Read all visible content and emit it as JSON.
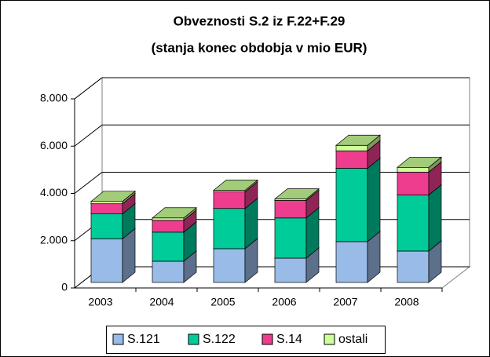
{
  "chart_data": {
    "type": "bar3d-stacked",
    "title": "Obveznosti S.2 iz F.22+F.29",
    "subtitle": "(stanja konec obdobja v mio EUR)",
    "categories": [
      "2003",
      "2004",
      "2005",
      "2006",
      "2007",
      "2008"
    ],
    "series": [
      {
        "name": "S.121",
        "color": "#99bbe8",
        "values": [
          1850,
          900,
          1430,
          1030,
          1730,
          1330
        ]
      },
      {
        "name": "S.122",
        "color": "#00cc99",
        "values": [
          1050,
          1230,
          1700,
          1700,
          3100,
          2370
        ]
      },
      {
        "name": "S.14",
        "color": "#ee3d8f",
        "values": [
          430,
          500,
          700,
          740,
          740,
          970
        ]
      },
      {
        "name": "ostali",
        "color": "#ccff99",
        "values": [
          100,
          100,
          70,
          60,
          230,
          200
        ]
      }
    ],
    "ylim": [
      0,
      8000
    ],
    "yticks": [
      0,
      {
        "value": 2000,
        "label": "2.000"
      },
      {
        "value": 4000,
        "label": "4.000"
      },
      {
        "value": 6000,
        "label": "6.000"
      },
      {
        "value": 8000,
        "label": "8.000"
      }
    ],
    "grid": true,
    "legend": "bottom"
  }
}
